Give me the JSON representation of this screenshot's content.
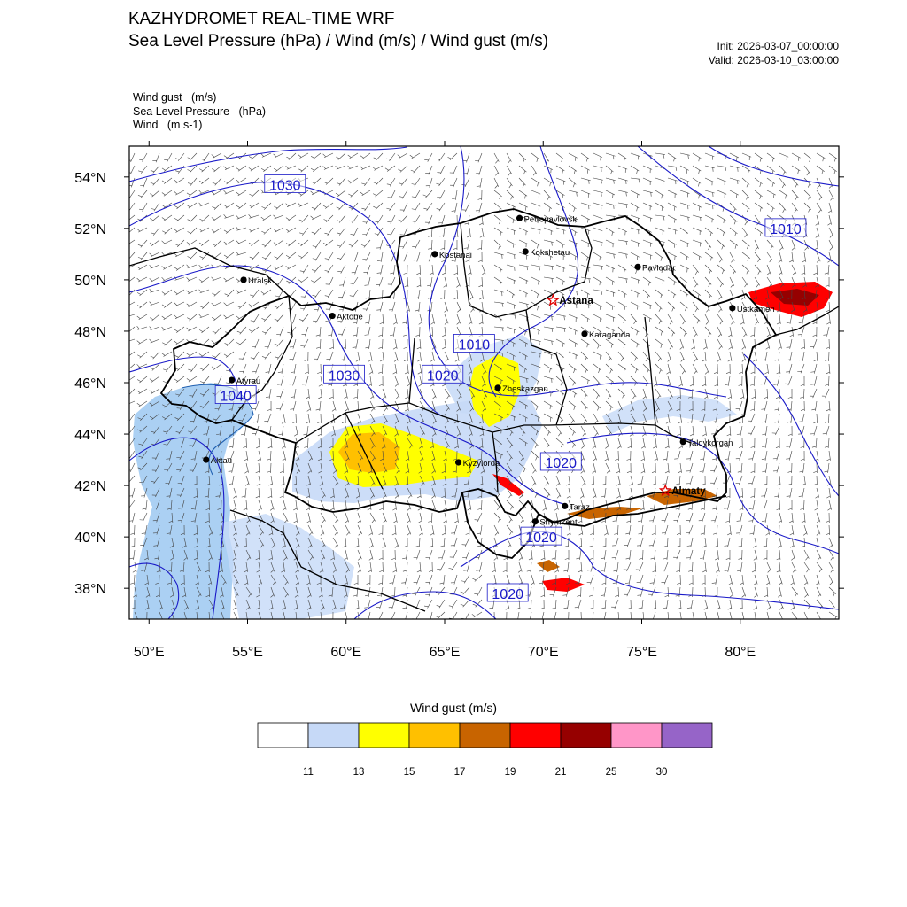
{
  "header": {
    "title": "KAZHYDROMET REAL-TIME WRF",
    "subtitle": "Sea Level Pressure  (hPa) / Wind  (m/s) / Wind gust  (m/s)",
    "init": "Init: 2026-03-07_00:00:00",
    "valid": "Valid: 2026-03-10_03:00:00"
  },
  "fields": [
    "Wind gust   (m/s)",
    "Sea Level Pressure   (hPa)",
    "Wind   (m s-1)"
  ],
  "map": {
    "lon_range": [
      49,
      85
    ],
    "lat_range": [
      36.8,
      55.2
    ],
    "lon_ticks": [
      "50°E",
      "55°E",
      "60°E",
      "65°E",
      "70°E",
      "75°E",
      "80°E"
    ],
    "lat_ticks": [
      "38°N",
      "40°N",
      "42°N",
      "44°N",
      "46°N",
      "48°N",
      "50°N",
      "52°N",
      "54°N"
    ],
    "cities": [
      {
        "name": "Petropavlovsk",
        "lon": 68.8,
        "lat": 52.4,
        "capital": false
      },
      {
        "name": "Kostanai",
        "lon": 64.5,
        "lat": 51.0,
        "capital": false
      },
      {
        "name": "Kokshetau",
        "lon": 69.1,
        "lat": 51.1,
        "capital": false
      },
      {
        "name": "Pavlodar",
        "lon": 74.8,
        "lat": 50.5,
        "capital": false
      },
      {
        "name": "Uralsk",
        "lon": 54.8,
        "lat": 50.0,
        "capital": false
      },
      {
        "name": "Astana",
        "lon": 70.5,
        "lat": 49.2,
        "capital": true
      },
      {
        "name": "Ustkamen",
        "lon": 79.6,
        "lat": 48.9,
        "capital": false
      },
      {
        "name": "Aktobe",
        "lon": 59.3,
        "lat": 48.6,
        "capital": false
      },
      {
        "name": "Karaganda",
        "lon": 72.1,
        "lat": 47.9,
        "capital": false
      },
      {
        "name": "Atyrau",
        "lon": 54.2,
        "lat": 46.1,
        "capital": false
      },
      {
        "name": "Zheskazgan",
        "lon": 67.7,
        "lat": 45.8,
        "capital": false
      },
      {
        "name": "Taldykorgan",
        "lon": 77.1,
        "lat": 43.7,
        "capital": false
      },
      {
        "name": "Aktau",
        "lon": 52.9,
        "lat": 43.0,
        "capital": false
      },
      {
        "name": "Kyzylorda",
        "lon": 65.7,
        "lat": 42.9,
        "capital": false
      },
      {
        "name": "Almaty",
        "lon": 76.2,
        "lat": 41.8,
        "capital": true
      },
      {
        "name": "Taraz",
        "lon": 71.1,
        "lat": 41.2,
        "capital": false
      },
      {
        "name": "Shymkent",
        "lon": 69.6,
        "lat": 40.6,
        "capital": false
      }
    ],
    "isobar_labels": [
      {
        "text": "1030",
        "lon": 56.9,
        "lat": 53.7
      },
      {
        "text": "1010",
        "lon": 82.3,
        "lat": 52.0
      },
      {
        "text": "1010",
        "lon": 66.5,
        "lat": 47.5
      },
      {
        "text": "1030",
        "lon": 59.9,
        "lat": 46.3
      },
      {
        "text": "1020",
        "lon": 64.9,
        "lat": 46.3
      },
      {
        "text": "1040",
        "lon": 54.4,
        "lat": 45.5
      },
      {
        "text": "1020",
        "lon": 70.9,
        "lat": 42.9
      },
      {
        "text": "1020",
        "lon": 69.9,
        "lat": 40.0
      },
      {
        "text": "1020",
        "lon": 68.2,
        "lat": 37.8
      }
    ]
  },
  "colorbar": {
    "title": "Wind gust (m/s)",
    "colors": [
      "#ffffff",
      "#c6d9f7",
      "#ffff00",
      "#ffc000",
      "#c86400",
      "#ff0000",
      "#960000",
      "#ff96c8",
      "#9664c8"
    ],
    "labels": [
      "11",
      "13",
      "15",
      "17",
      "19",
      "21",
      "25",
      "30"
    ]
  }
}
